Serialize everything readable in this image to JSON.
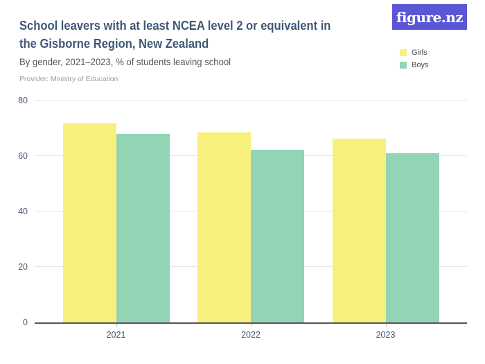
{
  "header": {
    "title_lines": [
      "School leavers with at least NCEA level 2 or equivalent in",
      "the Gisborne Region, New Zealand"
    ],
    "subtitle": "By gender, 2021–2023, % of students leaving school",
    "provider": "Provider: Ministry of Education",
    "logo_text": "figure.nz"
  },
  "colors": {
    "title": "#405878",
    "subtitle": "#555555",
    "provider": "#9C9C9C",
    "logo_bg": "#5A56D5",
    "logo_text": "#FFFFFF",
    "axis_label": "#4A5A75",
    "axis_line": "#555555",
    "gridline": "#E5E5E5",
    "tick_mark": "#C9C9C9"
  },
  "chart_data": {
    "type": "bar",
    "title": "School leavers with at least NCEA level 2 or equivalent in the Gisborne Region, New Zealand",
    "subtitle": "By gender, 2021–2023, % of students leaving school",
    "categories": [
      "2021",
      "2022",
      "2023"
    ],
    "series": [
      {
        "name": "Girls",
        "color": "#F8F07C",
        "values": [
          71.8,
          68.5,
          66.3
        ]
      },
      {
        "name": "Boys",
        "color": "#93D4B4",
        "values": [
          68.0,
          62.3,
          61.0
        ]
      }
    ],
    "xlabel": "",
    "ylabel": "% of students leaving school",
    "ylim": [
      0,
      80
    ],
    "yticks": [
      0,
      20,
      40,
      60,
      80
    ],
    "grid": "horizontal",
    "legend_position": "top-right"
  }
}
